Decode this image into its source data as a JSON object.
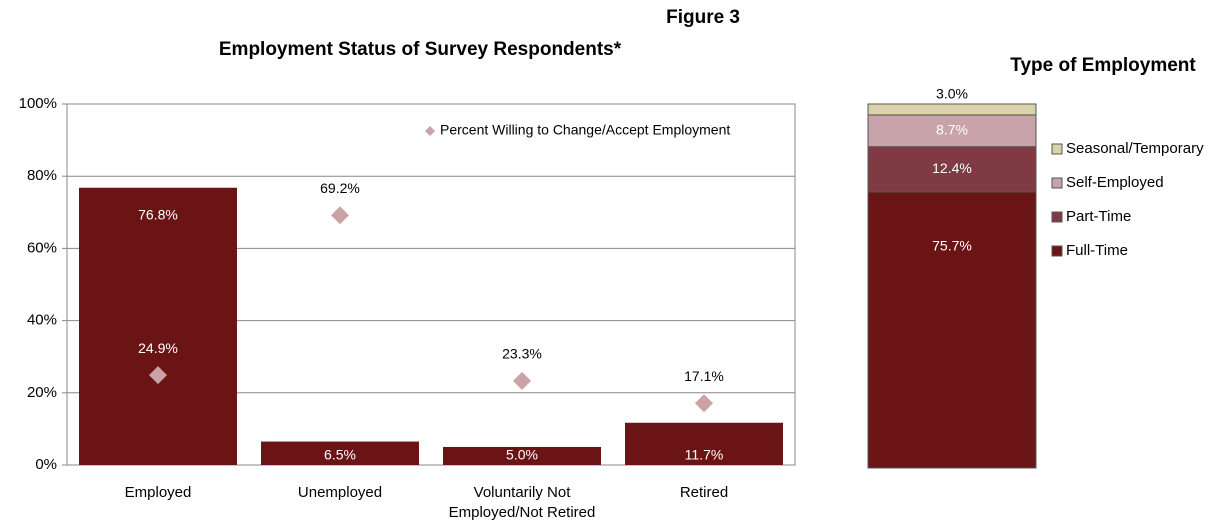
{
  "figure": "Figure 3",
  "chart_data": [
    {
      "type": "bar",
      "title": "Employment Status of Survey Respondents*",
      "categories": [
        "Employed",
        "Unemployed",
        "Voluntarily Not Employed/Not Retired",
        "Retired"
      ],
      "values": [
        76.8,
        6.5,
        5.0,
        11.7
      ],
      "value_labels": [
        "76.8%",
        "6.5%",
        "5.0%",
        "11.7%"
      ],
      "color": "#6b1416",
      "series": [
        {
          "name": "Percent Willing to Change/Accept Employment",
          "color": "#c9a3a6",
          "values": [
            24.9,
            69.2,
            23.3,
            17.1
          ],
          "value_labels": [
            "24.9%",
            "69.2%",
            "23.3%",
            "17.1%"
          ]
        }
      ],
      "ylim": [
        0,
        100
      ],
      "yticks": [
        {
          "value": 0,
          "label": "0%"
        },
        {
          "value": 20,
          "label": "20%"
        },
        {
          "value": 40,
          "label": "40%"
        },
        {
          "value": 60,
          "label": "60%"
        },
        {
          "value": 80,
          "label": "80%"
        },
        {
          "value": 100,
          "label": "100%"
        }
      ],
      "grid": true,
      "legend": "top-right"
    },
    {
      "type": "stacked_bar",
      "title": "Type of Employment",
      "series": [
        {
          "name": "Full-Time",
          "color": "#6b1416",
          "values": [
            75.7
          ],
          "value_labels": [
            "75.7%"
          ]
        },
        {
          "name": "Part-Time",
          "color": "#7f3a44",
          "values": [
            12.4
          ],
          "value_labels": [
            "12.4%"
          ]
        },
        {
          "name": "Self-Employed",
          "color": "#c9a3aa",
          "values": [
            8.7
          ],
          "value_labels": [
            "8.7%"
          ]
        },
        {
          "name": "Seasonal/Temporary",
          "color": "#d9d2aa",
          "values": [
            3.0
          ],
          "value_labels": [
            "3.0%"
          ]
        }
      ],
      "legend": "right"
    }
  ]
}
